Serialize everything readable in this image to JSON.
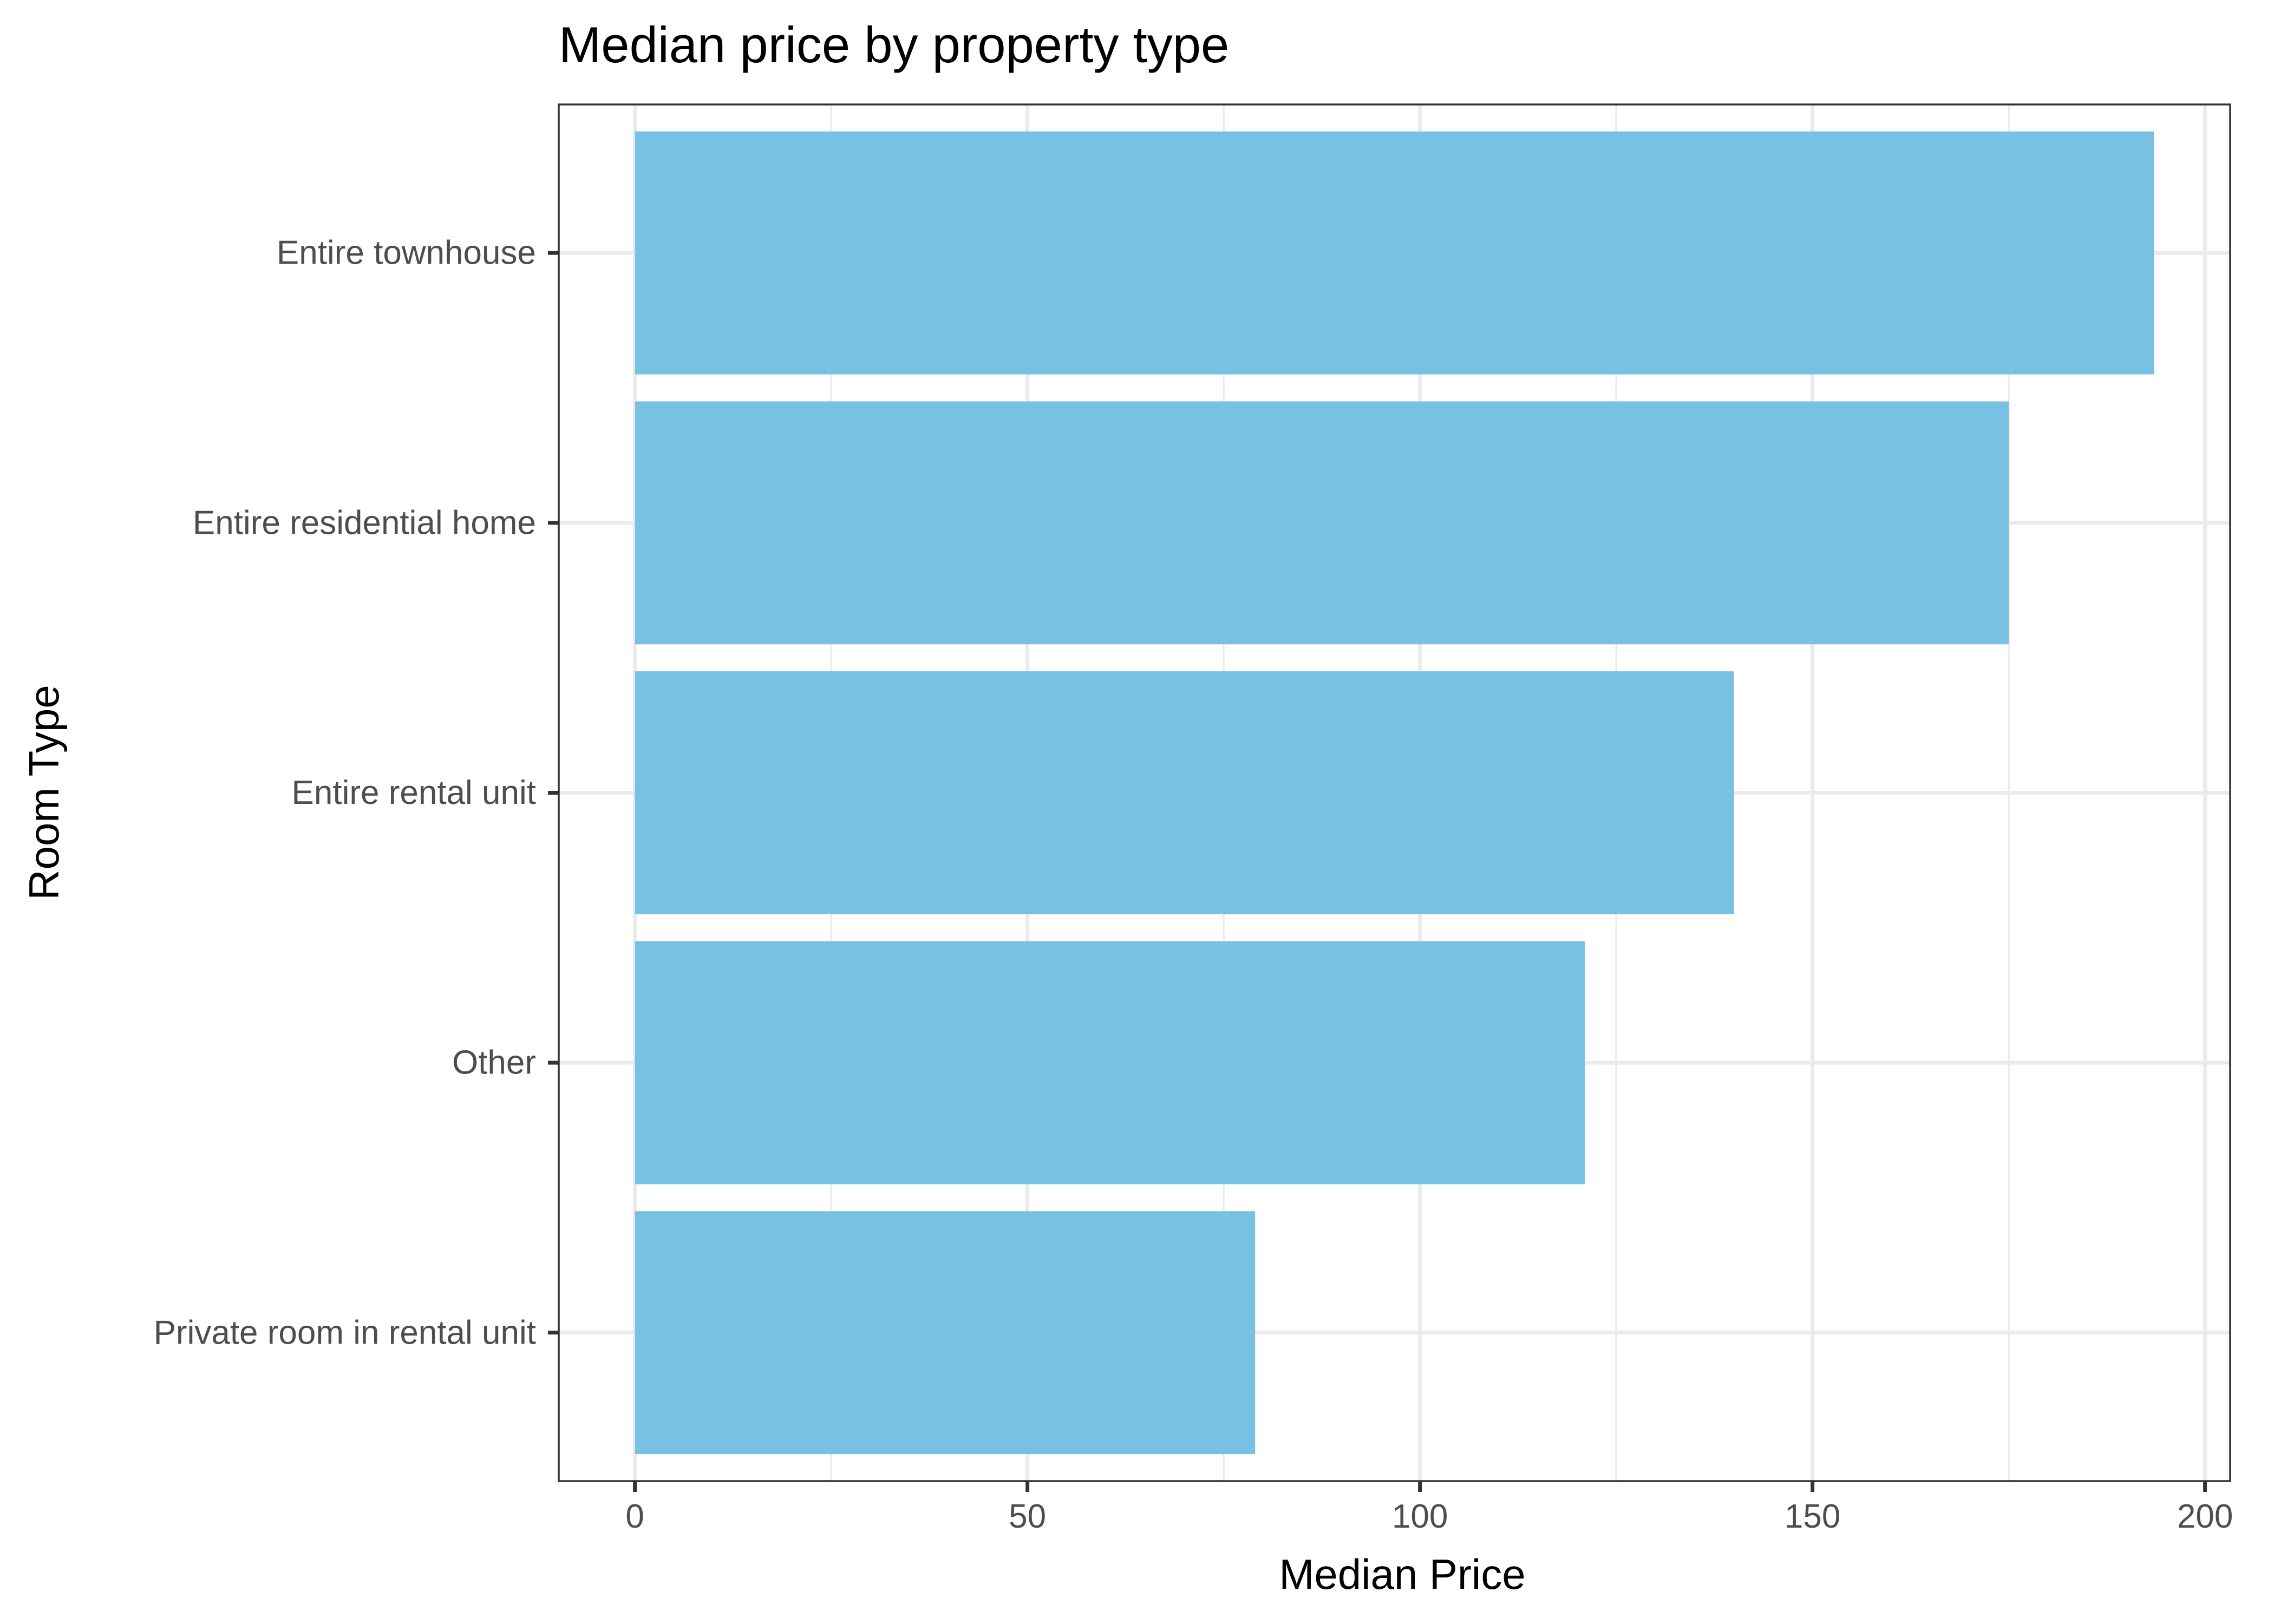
{
  "chart_data": {
    "type": "bar",
    "orientation": "horizontal",
    "title": "Median price by property type",
    "xlabel": "Median Price",
    "ylabel": "Room Type",
    "categories": [
      "Entire townhouse",
      "Entire residential home",
      "Entire rental unit",
      "Other",
      "Private room in rental unit"
    ],
    "values": [
      193.5,
      175,
      140,
      121,
      79
    ],
    "xlim": [
      -9.7,
      203.2
    ],
    "x_ticks": [
      0,
      50,
      100,
      150,
      200
    ],
    "x_tick_labels": [
      "0",
      "50",
      "100",
      "150",
      "200"
    ],
    "x_minor_ticks": [
      25,
      75,
      125,
      175
    ],
    "grid": true,
    "bar_color": "#78C1E4"
  }
}
